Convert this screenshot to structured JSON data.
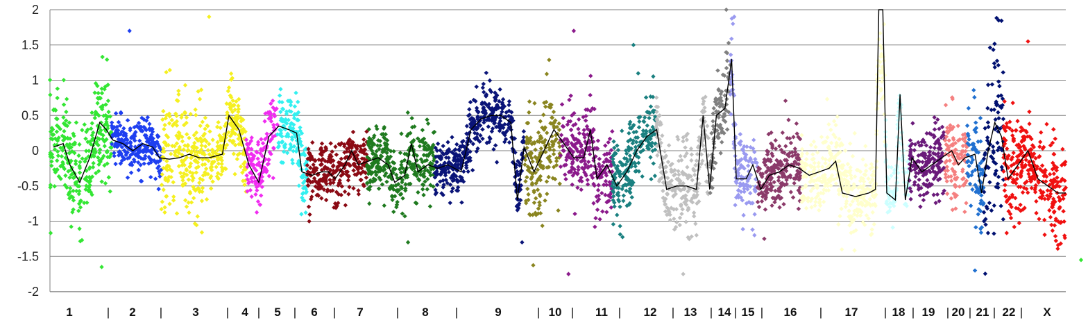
{
  "chart_data": {
    "type": "scatter",
    "title": "",
    "xlabel": "",
    "ylabel": "",
    "ylim": [
      -2,
      2
    ],
    "yticks": [
      -2,
      -1.5,
      -1,
      -0.5,
      0,
      0.5,
      1,
      1.5,
      2
    ],
    "ytick_labels": [
      "-2",
      "-1.5",
      "-1",
      "-0.5",
      "0",
      "0.5",
      "1",
      "1.5",
      "2"
    ],
    "grid": true,
    "legend": "none",
    "chromosomes": [
      {
        "label": "1",
        "start": 0,
        "end": 93,
        "color": "#33e633",
        "level": 0.0,
        "spread": 0.35
      },
      {
        "label": "2",
        "start": 93,
        "end": 168,
        "color": "#1e3ff0",
        "level": -0.1,
        "spread": 0.18
      },
      {
        "label": "3",
        "start": 168,
        "end": 238,
        "color": "#f5f020",
        "level": 0.1,
        "spread": 0.4
      },
      {
        "label": "4",
        "start": 238,
        "end": 296,
        "color": "#f5f020",
        "level": 0.3,
        "spread": 0.25
      },
      {
        "label": "5",
        "start": 296,
        "end": 343,
        "color": "#f02df0",
        "level": -0.35,
        "spread": 0.25
      },
      {
        "label": "6",
        "start": 343,
        "end": 388,
        "color": "#33f0f0",
        "level": -0.2,
        "spread": 0.25
      },
      {
        "label": "7",
        "start": 388,
        "end": 478,
        "color": "#8b0a14",
        "level": -0.15,
        "spread": 0.2
      },
      {
        "label": "8",
        "start": 478,
        "end": 580,
        "color": "#1f7a1f",
        "level": -0.3,
        "spread": 0.25
      },
      {
        "label": "9",
        "start": 580,
        "end": 716,
        "color": "#0a1478",
        "level": 0.45,
        "spread": 0.2
      },
      {
        "label": "10",
        "start": 716,
        "end": 770,
        "color": "#8a8520",
        "level": -0.05,
        "spread": 0.4
      },
      {
        "label": "11",
        "start": 770,
        "end": 848,
        "color": "#8b1a8b",
        "level": -0.25,
        "spread": 0.3
      },
      {
        "label": "12",
        "start": 848,
        "end": 914,
        "color": "#1a8080",
        "level": 0.1,
        "spread": 0.3
      },
      {
        "label": "13",
        "start": 914,
        "end": 994,
        "color": "#c0c0c0",
        "level": -0.5,
        "spread": 0.3
      },
      {
        "label": "14",
        "start": 994,
        "end": 1026,
        "color": "#808080",
        "level": -0.4,
        "spread": 0.3
      },
      {
        "label": "15",
        "start": 1026,
        "end": 1067,
        "color": "#9a9af0",
        "level": -0.4,
        "spread": 0.3
      },
      {
        "label": "16",
        "start": 1067,
        "end": 1133,
        "color": "#8b3a6a",
        "level": -0.35,
        "spread": 0.25
      },
      {
        "label": "17",
        "start": 1133,
        "end": 1260,
        "color": "#ffffcc",
        "level": -0.3,
        "spread": 0.3
      },
      {
        "label": "18",
        "start": 1260,
        "end": 1296,
        "color": "#ccffff",
        "level": -0.7,
        "spread": 0.2
      },
      {
        "label": "19",
        "start": 1296,
        "end": 1350,
        "color": "#6a1a7a",
        "level": -0.3,
        "spread": 0.25
      },
      {
        "label": "20",
        "start": 1350,
        "end": 1383,
        "color": "#f58080",
        "level": -0.45,
        "spread": 0.3
      },
      {
        "label": "21",
        "start": 1383,
        "end": 1408,
        "color": "#2070d0",
        "level": -0.2,
        "spread": 0.35
      },
      {
        "label": "22",
        "start": 1408,
        "end": 1438,
        "color": "#001070",
        "level": 0.0,
        "spread": 0.6
      },
      {
        "label": "X",
        "start": 1438,
        "end": 1532,
        "color": "#f01010",
        "level": -0.35,
        "spread": 0.35
      }
    ],
    "x_axis_labels": [
      {
        "text": "1",
        "x": 100
      },
      {
        "text": "|",
        "x": 156
      },
      {
        "text": "2",
        "x": 191
      },
      {
        "text": "|",
        "x": 232
      },
      {
        "text": "3",
        "x": 282
      },
      {
        "text": "|",
        "x": 328
      },
      {
        "text": "4",
        "x": 353
      },
      {
        "text": "|",
        "x": 373
      },
      {
        "text": "5",
        "x": 400
      },
      {
        "text": "|",
        "x": 425
      },
      {
        "text": "6",
        "x": 453
      },
      {
        "text": "|",
        "x": 482
      },
      {
        "text": "7",
        "x": 519
      },
      {
        "text": "|",
        "x": 573
      },
      {
        "text": "8",
        "x": 613
      },
      {
        "text": "|",
        "x": 658
      },
      {
        "text": "9",
        "x": 718
      },
      {
        "text": "|",
        "x": 776
      },
      {
        "text": "10",
        "x": 800
      },
      {
        "text": "|",
        "x": 825
      },
      {
        "text": "11",
        "x": 867
      },
      {
        "text": "|",
        "x": 893
      },
      {
        "text": "12",
        "x": 937
      },
      {
        "text": "|",
        "x": 970
      },
      {
        "text": "13",
        "x": 995
      },
      {
        "text": "|",
        "x": 1025
      },
      {
        "text": "14",
        "x": 1044
      },
      {
        "text": "|",
        "x": 1060
      },
      {
        "text": "15",
        "x": 1078
      },
      {
        "text": "|",
        "x": 1098
      },
      {
        "text": "16",
        "x": 1139
      },
      {
        "text": "|",
        "x": 1183
      },
      {
        "text": "17",
        "x": 1227
      },
      {
        "text": "|",
        "x": 1276
      },
      {
        "text": "18",
        "x": 1295
      },
      {
        "text": "|",
        "x": 1316
      },
      {
        "text": "19",
        "x": 1338
      },
      {
        "text": "|",
        "x": 1366
      },
      {
        "text": "20",
        "x": 1381
      },
      {
        "text": "|",
        "x": 1398
      },
      {
        "text": "21",
        "x": 1416
      },
      {
        "text": "|",
        "x": 1433
      },
      {
        "text": "22",
        "x": 1454
      },
      {
        "text": "|",
        "x": 1472
      },
      {
        "text": "X",
        "x": 1509
      }
    ],
    "smoothed_line": [
      [
        5,
        0.05
      ],
      [
        20,
        0.1
      ],
      [
        30,
        -0.2
      ],
      [
        45,
        -0.45
      ],
      [
        60,
        -0.1
      ],
      [
        75,
        0.4
      ],
      [
        85,
        0.3
      ],
      [
        95,
        0.15
      ],
      [
        110,
        0.1
      ],
      [
        125,
        0.0
      ],
      [
        140,
        0.1
      ],
      [
        155,
        0.05
      ],
      [
        165,
        -0.1
      ],
      [
        180,
        -0.12
      ],
      [
        195,
        -0.1
      ],
      [
        210,
        -0.05
      ],
      [
        225,
        -0.1
      ],
      [
        240,
        -0.1
      ],
      [
        260,
        -0.05
      ],
      [
        270,
        0.5
      ],
      [
        285,
        0.3
      ],
      [
        300,
        -0.2
      ],
      [
        315,
        -0.45
      ],
      [
        330,
        0.2
      ],
      [
        345,
        0.35
      ],
      [
        360,
        0.3
      ],
      [
        372,
        0.25
      ],
      [
        380,
        -0.3
      ],
      [
        395,
        -0.35
      ],
      [
        410,
        -0.3
      ],
      [
        420,
        -0.3
      ],
      [
        430,
        -0.4
      ],
      [
        445,
        -0.2
      ],
      [
        455,
        0.0
      ],
      [
        465,
        -0.2
      ],
      [
        480,
        -0.15
      ],
      [
        495,
        -0.1
      ],
      [
        510,
        -0.2
      ],
      [
        520,
        -0.45
      ],
      [
        535,
        -0.35
      ],
      [
        545,
        0.1
      ],
      [
        555,
        -0.3
      ],
      [
        570,
        -0.2
      ],
      [
        585,
        -0.25
      ],
      [
        600,
        -0.2
      ],
      [
        620,
        -0.3
      ],
      [
        635,
        0.3
      ],
      [
        650,
        0.45
      ],
      [
        665,
        0.5
      ],
      [
        680,
        0.5
      ],
      [
        695,
        0.4
      ],
      [
        705,
        -0.7
      ],
      [
        715,
        0.05
      ],
      [
        730,
        -0.3
      ],
      [
        745,
        0.0
      ],
      [
        760,
        0.3
      ],
      [
        775,
        0.1
      ],
      [
        790,
        -0.1
      ],
      [
        805,
        -0.1
      ],
      [
        815,
        0.3
      ],
      [
        825,
        -0.4
      ],
      [
        840,
        -0.2
      ],
      [
        855,
        -0.5
      ],
      [
        870,
        -0.3
      ],
      [
        885,
        0.0
      ],
      [
        900,
        0.2
      ],
      [
        915,
        0.3
      ],
      [
        930,
        -0.55
      ],
      [
        945,
        -0.5
      ],
      [
        960,
        -0.5
      ],
      [
        975,
        -0.55
      ],
      [
        985,
        0.5
      ],
      [
        995,
        -0.55
      ],
      [
        1005,
        0.5
      ],
      [
        1018,
        0.6
      ],
      [
        1028,
        1.3
      ],
      [
        1035,
        -0.4
      ],
      [
        1050,
        -0.4
      ],
      [
        1060,
        -0.2
      ],
      [
        1072,
        -0.55
      ],
      [
        1085,
        -0.35
      ],
      [
        1100,
        -0.3
      ],
      [
        1115,
        -0.2
      ],
      [
        1130,
        -0.25
      ],
      [
        1145,
        -0.35
      ],
      [
        1160,
        -0.3
      ],
      [
        1175,
        -0.25
      ],
      [
        1185,
        -0.15
      ],
      [
        1195,
        -0.6
      ],
      [
        1215,
        -0.65
      ],
      [
        1235,
        -0.6
      ],
      [
        1245,
        -0.55
      ],
      [
        1250,
        2.0
      ],
      [
        1256,
        2.0
      ],
      [
        1262,
        -0.6
      ],
      [
        1275,
        -0.7
      ],
      [
        1282,
        0.8
      ],
      [
        1290,
        -0.7
      ],
      [
        1300,
        -0.1
      ],
      [
        1315,
        -0.3
      ],
      [
        1330,
        -0.2
      ],
      [
        1345,
        -0.1
      ],
      [
        1360,
        0.0
      ],
      [
        1370,
        -0.2
      ],
      [
        1380,
        -0.1
      ],
      [
        1395,
        -0.05
      ],
      [
        1405,
        -0.6
      ],
      [
        1415,
        0.0
      ],
      [
        1425,
        0.4
      ],
      [
        1435,
        0.2
      ],
      [
        1445,
        -0.4
      ],
      [
        1460,
        -0.2
      ],
      [
        1475,
        0.0
      ],
      [
        1490,
        -0.4
      ],
      [
        1505,
        -0.5
      ],
      [
        1520,
        -0.6
      ],
      [
        1532,
        -0.6
      ]
    ],
    "outliers": [
      [
        78,
        -1.65
      ],
      [
        120,
        1.7
      ],
      [
        240,
        1.9
      ],
      [
        790,
        1.7
      ],
      [
        880,
        1.5
      ],
      [
        1020,
        2.0
      ],
      [
        1555,
        -1.55
      ],
      [
        1475,
        1.55
      ],
      [
        782,
        -1.75
      ],
      [
        955,
        -1.75
      ],
      [
        1395,
        -1.7
      ],
      [
        540,
        -1.3
      ],
      [
        712,
        -1.3
      ],
      [
        1030,
        1.8
      ],
      [
        1032,
        1.9
      ]
    ]
  }
}
